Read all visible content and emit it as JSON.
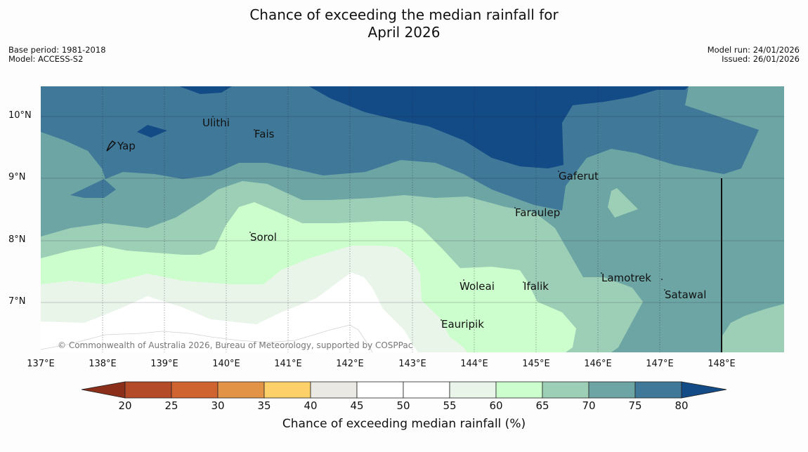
{
  "title": {
    "line1": "Chance of exceeding the median rainfall for",
    "line2": "April 2026"
  },
  "meta_left": {
    "base_period": "Base period: 1981-2018",
    "model": "Model: ACCESS-S2"
  },
  "meta_right": {
    "model_run": "Model run: 24/01/2026",
    "issued": "Issued: 26/01/2026"
  },
  "map": {
    "lat_labels": [
      "10°N",
      "9°N",
      "8°N",
      "7°N"
    ],
    "lon_labels": [
      "137°E",
      "138°E",
      "139°E",
      "140°E",
      "141°E",
      "142°E",
      "143°E",
      "144°E",
      "145°E",
      "146°E",
      "147°E",
      "148°E"
    ],
    "places": {
      "ulithi": "Ulithi",
      "fais": "Fais",
      "yap": "Yap",
      "gaferut": "Gaferut",
      "faraulep": "Faraulep",
      "sorol": "Sorol",
      "lamotrek": "Lamotrek",
      "satawal": "Satawal",
      "woleai": "Woleai",
      "ifalik": "Ifalik",
      "eauripik": "Eauripik"
    },
    "copyright": "© Commonwealth of Australia 2026, Bureau of Meteorology, supported by COSPPac"
  },
  "colorbar": {
    "ticks": [
      "20",
      "25",
      "30",
      "35",
      "40",
      "45",
      "50",
      "55",
      "60",
      "65",
      "70",
      "75",
      "80"
    ],
    "title": "Chance of exceeding median rainfall (%)",
    "colors": {
      "below_20": "#8b2e1a",
      "c20_25": "#b44b28",
      "c25_30": "#d06430",
      "c30_35": "#e39346",
      "c35_40": "#fdd06a",
      "c40_45": "#ebe9e4",
      "c45_50": "#ffffff",
      "c50_55": "#ffffff",
      "c55_60": "#eaf5ea",
      "c60_65": "#ccfdcc",
      "c65_70": "#9ccfb6",
      "c70_75": "#6da5a5",
      "c75_80": "#3f7898",
      "above_80": "#134b86"
    }
  }
}
